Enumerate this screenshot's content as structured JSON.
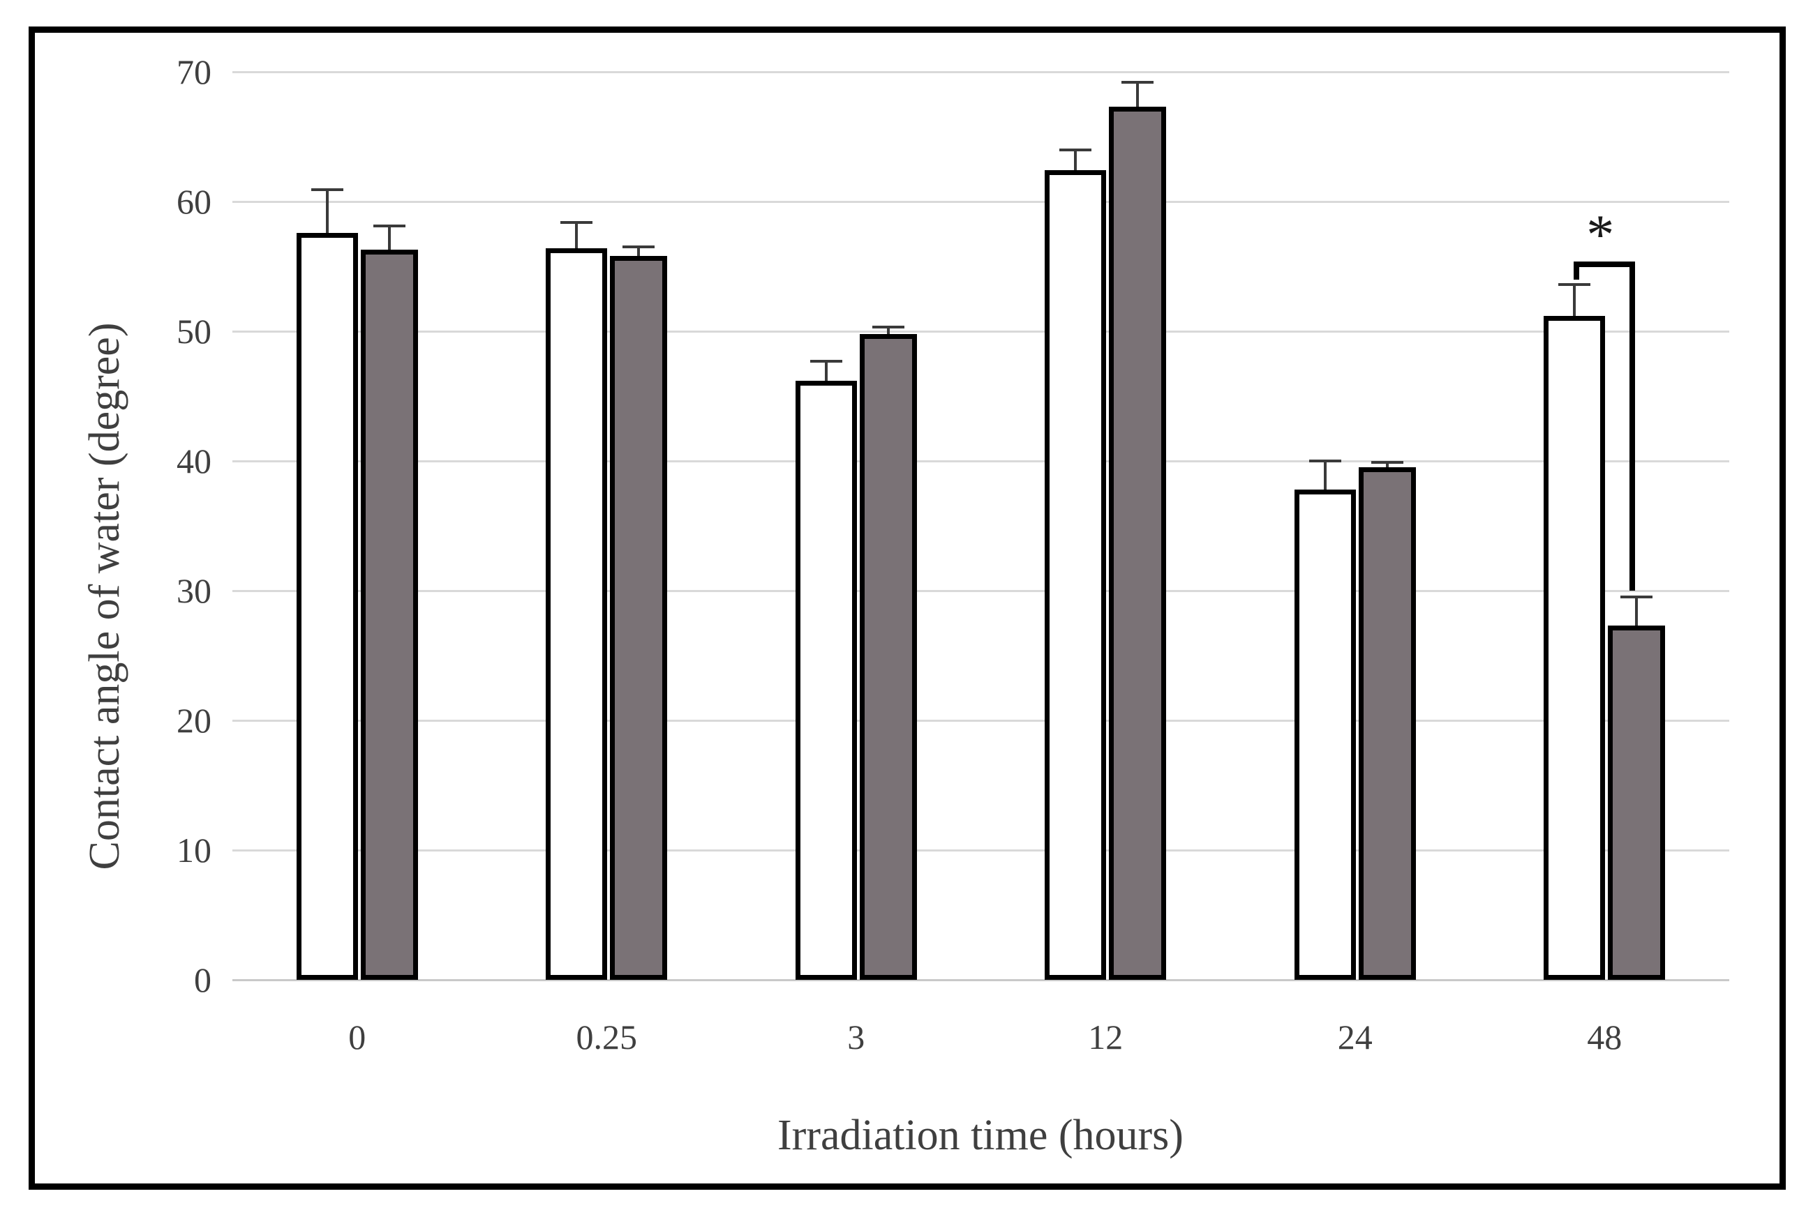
{
  "chart_data": {
    "type": "bar",
    "title": "",
    "xlabel": "Irradiation time (hours)",
    "ylabel": "Contact angle of water (degree)",
    "categories": [
      "0",
      "0.25",
      "3",
      "12",
      "24",
      "48"
    ],
    "series": [
      {
        "name": "white bars",
        "fill": "#ffffff",
        "values": [
          57.6,
          56.4,
          46.2,
          62.4,
          37.8,
          51.2
        ],
        "errors_up": [
          3.3,
          2.0,
          1.5,
          1.6,
          2.2,
          2.4
        ]
      },
      {
        "name": "gray bars",
        "fill": "#7a7276",
        "values": [
          56.3,
          55.8,
          49.8,
          67.3,
          39.5,
          27.3
        ],
        "errors_up": [
          1.8,
          0.7,
          0.5,
          1.9,
          0.4,
          2.2
        ]
      }
    ],
    "ylim": [
      0,
      70
    ],
    "ytick_step": 10,
    "yticks": [
      "0",
      "10",
      "20",
      "30",
      "40",
      "50",
      "60",
      "70"
    ],
    "grid": "horizontal",
    "legend": "none",
    "annotations": [
      {
        "type": "significance-bracket",
        "symbol": "*",
        "category": "48",
        "between": [
          "white bars",
          "gray bars"
        ],
        "bracket_top_value": 55.4,
        "left_tick_drop_value": 54.0,
        "right_drop_to_value": 30.0
      }
    ]
  },
  "colors": {
    "background": "#ffffff",
    "frame": "#000000",
    "bar_stroke": "#000000",
    "white_bar_fill": "#ffffff",
    "gray_bar_fill": "#7a7276",
    "gridline": "#d9d9d9",
    "axis_line": "#c9c9c9",
    "tick_text": "#3f3f3f",
    "error_bar": "#3a3a3a",
    "bracket": "#000000"
  }
}
